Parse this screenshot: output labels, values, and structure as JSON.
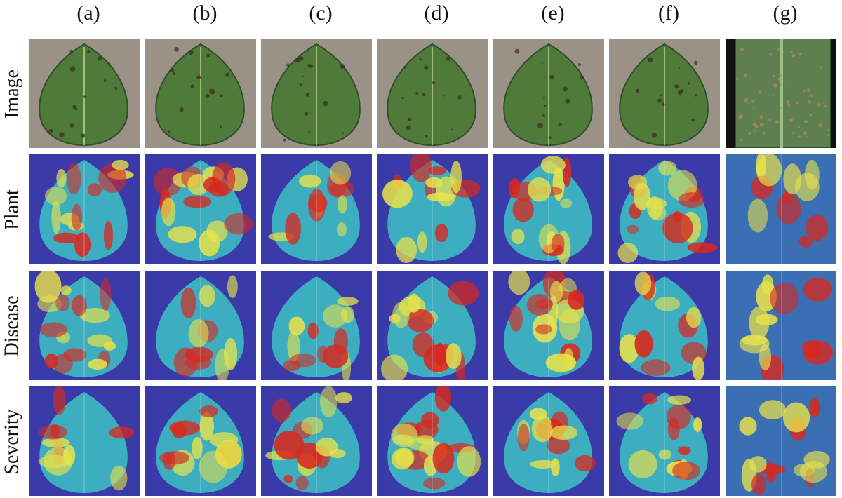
{
  "figure": {
    "columns": [
      "(a)",
      "(b)",
      "(c)",
      "(d)",
      "(e)",
      "(f)",
      "(g)"
    ],
    "rows": [
      "Image",
      "Plant",
      "Disease",
      "Severity"
    ]
  },
  "colors": {
    "photo_background": "#9a9187",
    "leaf_dark": "#2f4f2b",
    "leaf_mid": "#4f7a3a",
    "heatmap_low": "#3a3aa8",
    "heatmap_mid": "#3fd4c8",
    "heatmap_yellow": "#e8e24a",
    "heatmap_high": "#d8281e"
  }
}
